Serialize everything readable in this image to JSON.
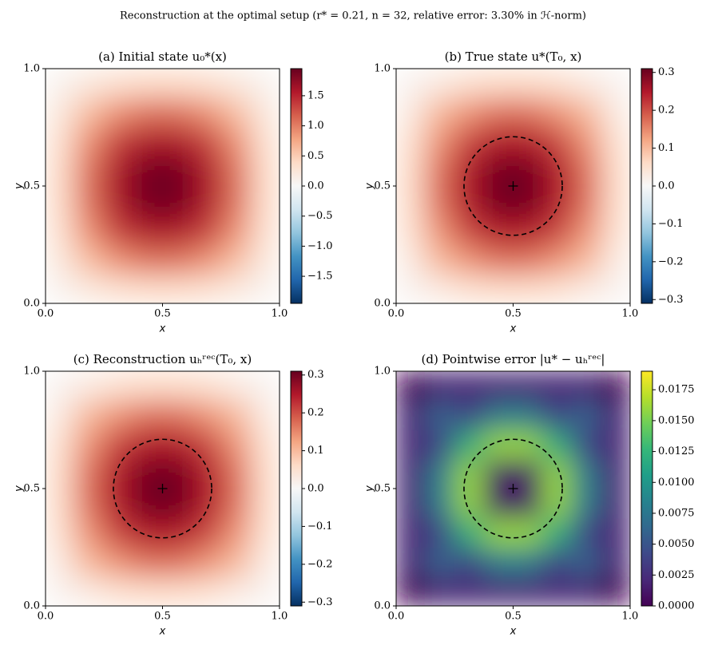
{
  "title": "Reconstruction at the optimal setup (r* = 0.21, n = 32, relative error: 3.30% in ℋ-norm)",
  "chart_data": [
    {
      "type": "heatmap",
      "title": "(a) Initial state u₀*(x)",
      "xlabel": "x",
      "ylabel": "y",
      "xlim": [
        0,
        1
      ],
      "ylim": [
        0,
        1
      ],
      "xticks": [
        {
          "value": 0,
          "label": "0.0"
        },
        0.5,
        {
          "value": 1,
          "label": "1.0"
        }
      ],
      "yticks": [
        {
          "value": 0,
          "label": "0.0"
        },
        0.5,
        {
          "value": 1,
          "label": "1.0"
        }
      ],
      "xbins": [
        0,
        0.125,
        0.25,
        0.375,
        0.5,
        0.625,
        0.75,
        0.875,
        1
      ],
      "ybins": [
        0,
        0.125,
        0.25,
        0.375,
        0.5,
        0.625,
        0.75,
        0.875,
        1
      ],
      "z": [
        [
          0.07,
          0.21,
          0.32,
          0.37,
          0.37,
          0.32,
          0.21,
          0.07
        ],
        [
          0.21,
          0.6,
          0.9,
          1.06,
          1.06,
          0.9,
          0.6,
          0.21
        ],
        [
          0.32,
          0.9,
          1.35,
          1.59,
          1.59,
          1.35,
          0.9,
          0.32
        ],
        [
          0.37,
          1.06,
          1.59,
          1.88,
          1.88,
          1.59,
          1.06,
          0.37
        ],
        [
          0.37,
          1.06,
          1.59,
          1.88,
          1.88,
          1.59,
          1.06,
          0.37
        ],
        [
          0.32,
          0.9,
          1.35,
          1.59,
          1.59,
          1.35,
          0.9,
          0.32
        ],
        [
          0.21,
          0.6,
          0.9,
          1.06,
          1.06,
          0.9,
          0.6,
          0.21
        ],
        [
          0.07,
          0.21,
          0.32,
          0.37,
          0.37,
          0.32,
          0.21,
          0.07
        ]
      ],
      "colormap": "RdBu_r",
      "clim": [
        -1.95,
        1.95
      ],
      "cticks": [
        {
          "value": -1.5,
          "label": "−1.5"
        },
        {
          "value": -1,
          "label": "−1.0"
        },
        {
          "value": -0.5,
          "label": "−0.5"
        },
        {
          "value": 0,
          "label": "0.0"
        },
        0.5,
        {
          "value": 1,
          "label": "1.0"
        },
        1.5
      ]
    },
    {
      "type": "heatmap",
      "title": "(b) True state u*(T₀, x)",
      "xlabel": "x",
      "ylabel": "y",
      "xlim": [
        0,
        1
      ],
      "ylim": [
        0,
        1
      ],
      "xticks": [
        {
          "value": 0,
          "label": "0.0"
        },
        0.5,
        {
          "value": 1,
          "label": "1.0"
        }
      ],
      "yticks": [
        {
          "value": 0,
          "label": "0.0"
        },
        0.5,
        {
          "value": 1,
          "label": "1.0"
        }
      ],
      "xbins": [
        0,
        0.125,
        0.25,
        0.375,
        0.5,
        0.625,
        0.75,
        0.875,
        1
      ],
      "ybins": [
        0,
        0.125,
        0.25,
        0.375,
        0.5,
        0.625,
        0.75,
        0.875,
        1
      ],
      "z": [
        [
          0.01,
          0.03,
          0.05,
          0.06,
          0.06,
          0.05,
          0.03,
          0.01
        ],
        [
          0.03,
          0.1,
          0.14,
          0.17,
          0.17,
          0.14,
          0.1,
          0.03
        ],
        [
          0.05,
          0.14,
          0.21,
          0.25,
          0.25,
          0.21,
          0.14,
          0.05
        ],
        [
          0.06,
          0.17,
          0.25,
          0.3,
          0.3,
          0.25,
          0.17,
          0.06
        ],
        [
          0.06,
          0.17,
          0.25,
          0.3,
          0.3,
          0.25,
          0.17,
          0.06
        ],
        [
          0.05,
          0.14,
          0.21,
          0.25,
          0.25,
          0.21,
          0.14,
          0.05
        ],
        [
          0.03,
          0.1,
          0.14,
          0.17,
          0.17,
          0.14,
          0.1,
          0.03
        ],
        [
          0.01,
          0.03,
          0.05,
          0.06,
          0.06,
          0.05,
          0.03,
          0.01
        ]
      ],
      "colormap": "RdBu_r",
      "clim": [
        -0.31,
        0.31
      ],
      "cticks": [
        {
          "value": -0.3,
          "label": "−0.3"
        },
        {
          "value": -0.2,
          "label": "−0.2"
        },
        {
          "value": -0.1,
          "label": "−0.1"
        },
        {
          "value": 0,
          "label": "0.0"
        },
        0.1,
        0.2,
        0.3
      ],
      "circle": {
        "center": [
          0.5,
          0.5
        ],
        "radius": 0.21
      },
      "marker": [
        0.5,
        0.5
      ]
    },
    {
      "type": "heatmap",
      "title": "(c) Reconstruction uₕʳᵉᶜ(T₀, x)",
      "xlabel": "x",
      "ylabel": "y",
      "xlim": [
        0,
        1
      ],
      "ylim": [
        0,
        1
      ],
      "xticks": [
        {
          "value": 0,
          "label": "0.0"
        },
        0.5,
        {
          "value": 1,
          "label": "1.0"
        }
      ],
      "yticks": [
        {
          "value": 0,
          "label": "0.0"
        },
        0.5,
        {
          "value": 1,
          "label": "1.0"
        }
      ],
      "xbins": [
        0,
        0.125,
        0.25,
        0.375,
        0.5,
        0.625,
        0.75,
        0.875,
        1
      ],
      "ybins": [
        0,
        0.125,
        0.25,
        0.375,
        0.5,
        0.625,
        0.75,
        0.875,
        1
      ],
      "z": [
        [
          0.01,
          0.03,
          0.05,
          0.06,
          0.06,
          0.05,
          0.03,
          0.01
        ],
        [
          0.03,
          0.1,
          0.14,
          0.17,
          0.17,
          0.14,
          0.1,
          0.03
        ],
        [
          0.05,
          0.14,
          0.21,
          0.25,
          0.25,
          0.21,
          0.14,
          0.05
        ],
        [
          0.06,
          0.17,
          0.25,
          0.3,
          0.3,
          0.25,
          0.17,
          0.06
        ],
        [
          0.06,
          0.17,
          0.25,
          0.3,
          0.3,
          0.25,
          0.17,
          0.06
        ],
        [
          0.05,
          0.14,
          0.21,
          0.25,
          0.25,
          0.21,
          0.14,
          0.05
        ],
        [
          0.03,
          0.1,
          0.14,
          0.17,
          0.17,
          0.14,
          0.1,
          0.03
        ],
        [
          0.01,
          0.03,
          0.05,
          0.06,
          0.06,
          0.05,
          0.03,
          0.01
        ]
      ],
      "colormap": "RdBu_r",
      "clim": [
        -0.31,
        0.31
      ],
      "cticks": [
        {
          "value": -0.3,
          "label": "−0.3"
        },
        {
          "value": -0.2,
          "label": "−0.2"
        },
        {
          "value": -0.1,
          "label": "−0.1"
        },
        {
          "value": 0,
          "label": "0.0"
        },
        0.1,
        0.2,
        0.3
      ],
      "circle": {
        "center": [
          0.5,
          0.5
        ],
        "radius": 0.21
      },
      "marker": [
        0.5,
        0.5
      ]
    },
    {
      "type": "heatmap",
      "title": "(d) Pointwise error |u* − uₕʳᵉᶜ|",
      "xlabel": "x",
      "ylabel": "y",
      "xlim": [
        0,
        1
      ],
      "ylim": [
        0,
        1
      ],
      "xticks": [
        {
          "value": 0,
          "label": "0.0"
        },
        0.5,
        {
          "value": 1,
          "label": "1.0"
        }
      ],
      "yticks": [
        {
          "value": 0,
          "label": "0.0"
        },
        0.5,
        {
          "value": 1,
          "label": "1.0"
        }
      ],
      "xbins": [
        0,
        0.125,
        0.25,
        0.375,
        0.5,
        0.625,
        0.75,
        0.875,
        1
      ],
      "ybins": [
        0,
        0.125,
        0.25,
        0.375,
        0.5,
        0.625,
        0.75,
        0.875,
        1
      ],
      "z": [
        [
          0.0,
          0.002,
          0.002,
          0.002,
          0.002,
          0.002,
          0.002,
          0.0
        ],
        [
          0.002,
          0.006,
          0.004,
          0.008,
          0.008,
          0.004,
          0.006,
          0.002
        ],
        [
          0.002,
          0.004,
          0.012,
          0.016,
          0.016,
          0.012,
          0.004,
          0.002
        ],
        [
          0.002,
          0.008,
          0.016,
          0.001,
          0.001,
          0.016,
          0.008,
          0.002
        ],
        [
          0.002,
          0.008,
          0.016,
          0.001,
          0.001,
          0.016,
          0.008,
          0.002
        ],
        [
          0.002,
          0.004,
          0.012,
          0.016,
          0.016,
          0.012,
          0.004,
          0.002
        ],
        [
          0.002,
          0.006,
          0.004,
          0.008,
          0.008,
          0.004,
          0.006,
          0.002
        ],
        [
          0.0,
          0.002,
          0.002,
          0.002,
          0.002,
          0.002,
          0.002,
          0.0
        ]
      ],
      "colormap": "viridis",
      "clim": [
        0,
        0.019
      ],
      "cticks": [
        {
          "value": 0,
          "label": "0.0000"
        },
        {
          "value": 0.0025,
          "label": "0.0025"
        },
        {
          "value": 0.005,
          "label": "0.0050"
        },
        {
          "value": 0.0075,
          "label": "0.0075"
        },
        {
          "value": 0.01,
          "label": "0.0100"
        },
        {
          "value": 0.0125,
          "label": "0.0125"
        },
        {
          "value": 0.015,
          "label": "0.0150"
        },
        {
          "value": 0.0175,
          "label": "0.0175"
        }
      ],
      "circle": {
        "center": [
          0.5,
          0.5
        ],
        "radius": 0.21
      },
      "marker": [
        0.5,
        0.5
      ]
    }
  ]
}
